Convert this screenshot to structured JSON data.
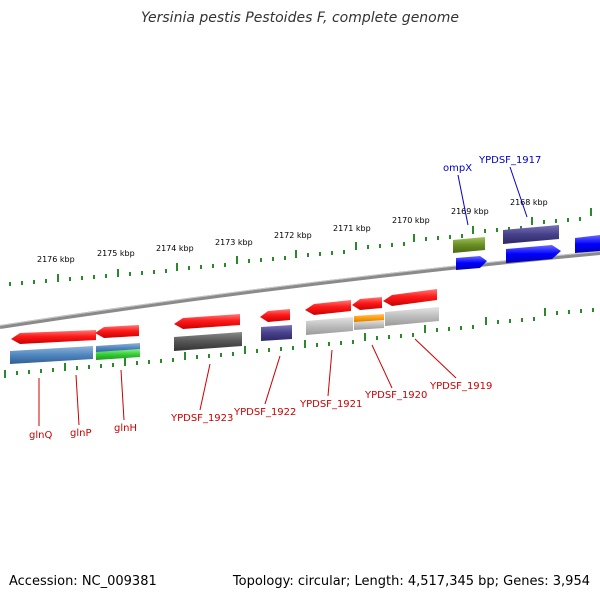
{
  "title": "Yersinia pestis Pestoides F, complete genome",
  "footer": {
    "accession": "Accession: NC_009381",
    "summary": "Topology: circular; Length: 4,517,345 bp; Genes: 3,954"
  },
  "colors": {
    "forward_ticks": "#2a8a2a",
    "backbone": "#888888",
    "top_label": "#0000cc",
    "bottom_label": "#cc0000"
  },
  "scale_labels": [
    "2176 kbp",
    "2175 kbp",
    "2174 kbp",
    "2173 kbp",
    "2172 kbp",
    "2171 kbp",
    "2170 kbp",
    "2169 kbp",
    "2168 kbp"
  ],
  "top_gene_labels": [
    "ompX",
    "YPDSF_1917"
  ],
  "bottom_gene_labels": [
    "glnQ",
    "glnP",
    "glnH",
    "YPDSF_1923",
    "YPDSF_1922",
    "YPDSF_1921",
    "YPDSF_1920",
    "YPDSF_1919"
  ]
}
